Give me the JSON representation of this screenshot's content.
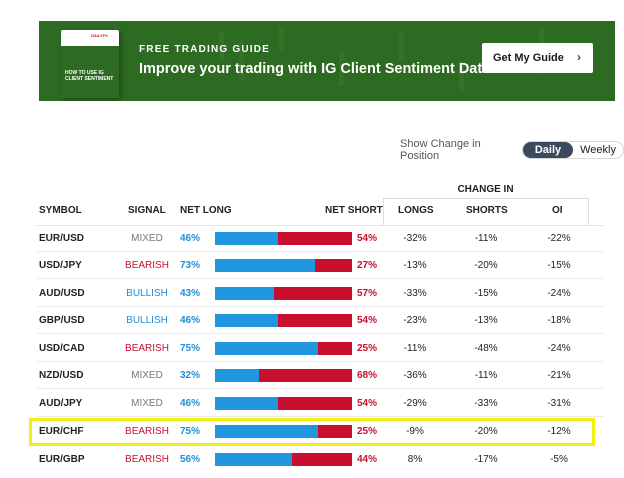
{
  "banner": {
    "eyebrow": "FREE TRADING GUIDE",
    "headline": "Improve your trading with IG Client Sentiment Data",
    "cta_label": "Get My Guide",
    "book_text": "HOW TO USE IG CLIENT SENTIMENT",
    "bg_color": "#2d6a22"
  },
  "toggle": {
    "label": "Show Change in Position",
    "options": [
      "Daily",
      "Weekly"
    ],
    "selected": "Daily"
  },
  "table": {
    "group_header": "CHANGE IN",
    "headers": {
      "symbol": "SYMBOL",
      "signal": "SIGNAL",
      "net_long": "NET LONG",
      "net_short": "NET SHORT",
      "longs": "LONGS",
      "shorts": "SHORTS",
      "oi": "OI"
    },
    "rows": [
      {
        "symbol": "EUR/USD",
        "signal": "MIXED",
        "net_long": "46%",
        "net_short": "54%",
        "long_value": 46,
        "longs": "-32%",
        "shorts": "-11%",
        "oi": "-22%"
      },
      {
        "symbol": "USD/JPY",
        "signal": "BEARISH",
        "net_long": "73%",
        "net_short": "27%",
        "long_value": 73,
        "longs": "-13%",
        "shorts": "-20%",
        "oi": "-15%"
      },
      {
        "symbol": "AUD/USD",
        "signal": "BULLISH",
        "net_long": "43%",
        "net_short": "57%",
        "long_value": 43,
        "longs": "-33%",
        "shorts": "-15%",
        "oi": "-24%"
      },
      {
        "symbol": "GBP/USD",
        "signal": "BULLISH",
        "net_long": "46%",
        "net_short": "54%",
        "long_value": 46,
        "longs": "-23%",
        "shorts": "-13%",
        "oi": "-18%"
      },
      {
        "symbol": "USD/CAD",
        "signal": "BEARISH",
        "net_long": "75%",
        "net_short": "25%",
        "long_value": 75,
        "longs": "-11%",
        "shorts": "-48%",
        "oi": "-24%"
      },
      {
        "symbol": "NZD/USD",
        "signal": "MIXED",
        "net_long": "32%",
        "net_short": "68%",
        "long_value": 32,
        "longs": "-36%",
        "shorts": "-11%",
        "oi": "-21%"
      },
      {
        "symbol": "AUD/JPY",
        "signal": "MIXED",
        "net_long": "46%",
        "net_short": "54%",
        "long_value": 46,
        "longs": "-29%",
        "shorts": "-33%",
        "oi": "-31%"
      },
      {
        "symbol": "EUR/CHF",
        "signal": "BEARISH",
        "net_long": "75%",
        "net_short": "25%",
        "long_value": 75,
        "longs": "-9%",
        "shorts": "-20%",
        "oi": "-12%",
        "highlighted": true
      },
      {
        "symbol": "EUR/GBP",
        "signal": "BEARISH",
        "net_long": "56%",
        "net_short": "44%",
        "long_value": 56,
        "longs": "8%",
        "shorts": "-17%",
        "oi": "-5%"
      }
    ]
  },
  "colors": {
    "long": "#1f96de",
    "short": "#c8102e",
    "bullish": "#1f8fd6",
    "bearish": "#c8102e",
    "mixed": "#777777",
    "highlight": "#f5ef12"
  }
}
